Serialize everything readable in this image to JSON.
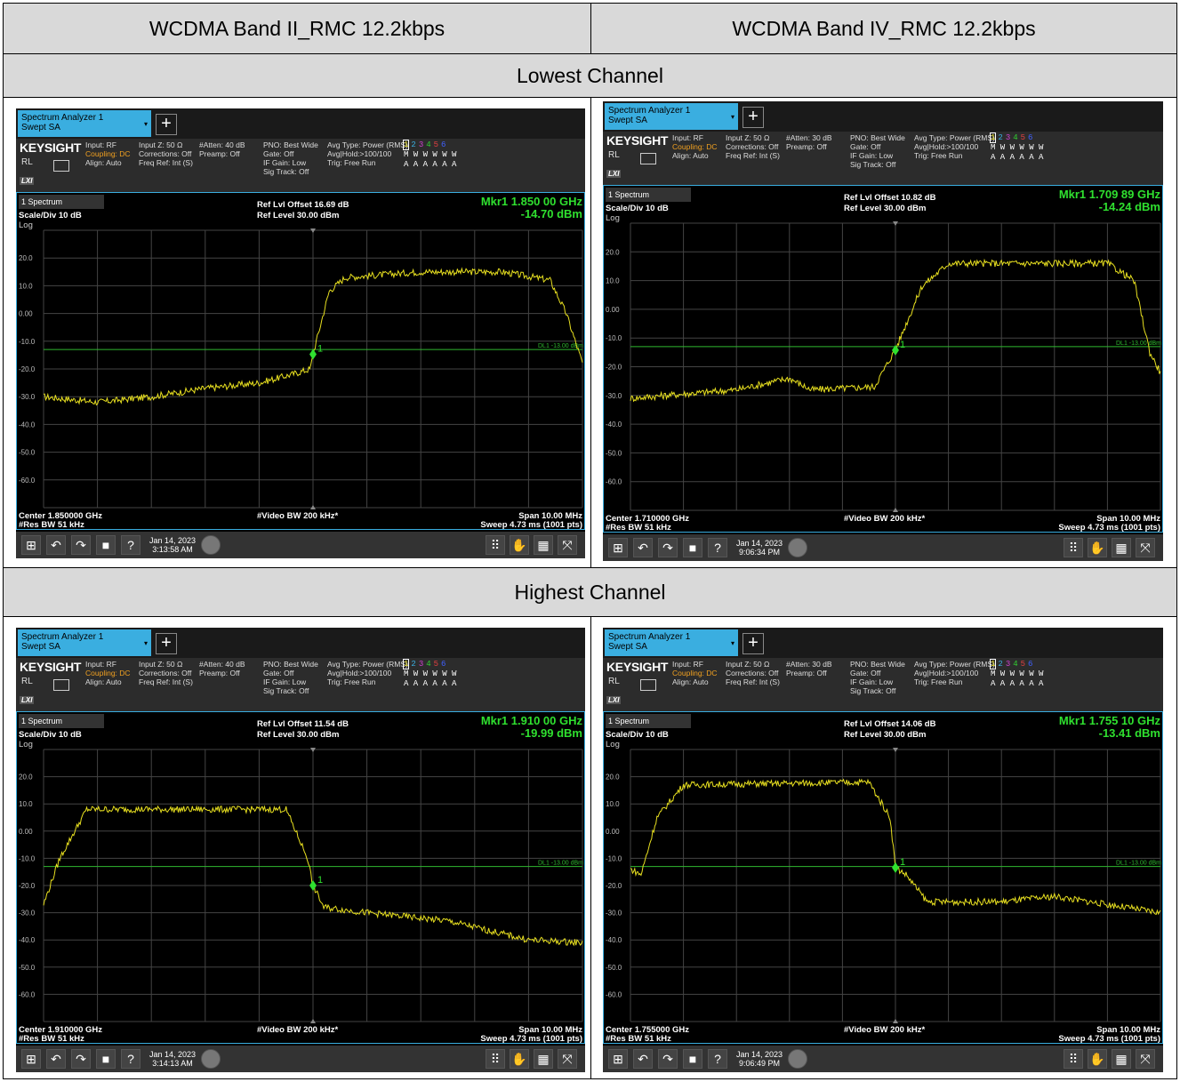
{
  "table": {
    "col1_header": "WCDMA Band II_RMC 12.2kbps",
    "col2_header": "WCDMA Band IV_RMC 12.2kbps",
    "row1_header": "Lowest Channel",
    "row2_header": "Highest Channel"
  },
  "common": {
    "window_title": "Spectrum Analyzer 1",
    "window_sub": "Swept SA",
    "plus": "+",
    "logo": "KEYSIGHT",
    "rl": "RL",
    "lxi": "LXI",
    "input": "Input: RF",
    "coupling": "Coupling: DC",
    "align": "Align: Auto",
    "input_z": "Input Z: 50 Ω",
    "corrections": "Corrections: Off",
    "freq_ref": "Freq Ref: Int (S)",
    "preamp": "Preamp: Off",
    "pno": "PNO: Best Wide",
    "gate": "Gate: Off",
    "if_gain": "IF Gain: Low",
    "sig_track": "Sig Track: Off",
    "avg_type": "Avg Type: Power (RMS)",
    "avg_hold": "Avg|Hold:>100/100",
    "trig": "Trig: Free Run",
    "trace_nums": [
      "1",
      "2",
      "3",
      "4",
      "5",
      "6"
    ],
    "trace_types": "M W W W W W",
    "trace_det": "A A A A A A",
    "window_label": "1 Spectrum",
    "scale": "Scale/Div 10 dB",
    "log": "Log",
    "ref_level": "Ref Level 30.00 dBm",
    "vbw": "#Video BW 200 kHz*",
    "rbw": "#Res BW 51 kHz",
    "span": "Span 10.00 MHz",
    "sweep": "Sweep 4.73 ms (1001 pts)",
    "dl_label": "DL1 -13.00 dBm",
    "marker_num": "1",
    "yticks": [
      "20.0",
      "10.0",
      "0.00",
      "-10.0",
      "-20.0",
      "-30.0",
      "-40.0",
      "-50.0",
      "-60.0"
    ],
    "date": "Jan 14, 2023",
    "colors": {
      "trace": "#e8e020",
      "marker": "#2fe02f",
      "display_line": "#2fb82f",
      "accent": "#3aaee0"
    }
  },
  "panels": [
    {
      "atten": "#Atten: 40 dB",
      "offset": "Ref Lvl Offset 16.69 dB",
      "mkr_freq": "Mkr1  1.850 00 GHz",
      "mkr_amp": "-14.70 dBm",
      "center": "Center 1.850000 GHz",
      "time": "3:13:58 AM"
    },
    {
      "atten": "#Atten: 30 dB",
      "offset": "Ref Lvl Offset 10.82 dB",
      "mkr_freq": "Mkr1  1.709 89 GHz",
      "mkr_amp": "-14.24 dBm",
      "center": "Center 1.710000 GHz",
      "time": "9:06:34 PM"
    },
    {
      "atten": "#Atten: 40 dB",
      "offset": "Ref Lvl Offset 11.54 dB",
      "mkr_freq": "Mkr1  1.910 00 GHz",
      "mkr_amp": "-19.99 dBm",
      "center": "Center 1.910000 GHz",
      "time": "3:14:13 AM"
    },
    {
      "atten": "#Atten: 30 dB",
      "offset": "Ref Lvl Offset 14.06 dB",
      "mkr_freq": "Mkr1  1.755 10 GHz",
      "mkr_amp": "-13.41 dBm",
      "center": "Center 1.755000 GHz",
      "time": "9:06:49 PM"
    }
  ],
  "chart_data": [
    {
      "type": "line",
      "ylim": [
        -70,
        30
      ],
      "markers": [
        {
          "x_div": 5.0,
          "y": -14.7
        }
      ],
      "display_line": -13.0,
      "trace_shape": [
        [
          0,
          -30
        ],
        [
          1,
          -32
        ],
        [
          2,
          -30
        ],
        [
          3,
          -27
        ],
        [
          4,
          -25
        ],
        [
          4.6,
          -22
        ],
        [
          4.95,
          -20
        ],
        [
          5.0,
          -14.7
        ],
        [
          5.3,
          8
        ],
        [
          5.6,
          13
        ],
        [
          7,
          15
        ],
        [
          8.5,
          15
        ],
        [
          9.4,
          12
        ],
        [
          9.7,
          0
        ],
        [
          10,
          -18
        ]
      ]
    },
    {
      "type": "line",
      "ylim": [
        -70,
        30
      ],
      "markers": [
        {
          "x_div": 5.0,
          "y": -14.24
        }
      ],
      "display_line": -13.0,
      "trace_shape": [
        [
          0,
          -31
        ],
        [
          2,
          -28
        ],
        [
          3,
          -24
        ],
        [
          3.4,
          -28
        ],
        [
          4.6,
          -27
        ],
        [
          5.0,
          -14
        ],
        [
          5.5,
          8
        ],
        [
          6,
          16
        ],
        [
          9,
          16
        ],
        [
          9.5,
          10
        ],
        [
          9.8,
          -15
        ],
        [
          10,
          -22
        ]
      ]
    },
    {
      "type": "line",
      "ylim": [
        -70,
        30
      ],
      "markers": [
        {
          "x_div": 5.0,
          "y": -19.99
        }
      ],
      "display_line": -13.0,
      "trace_shape": [
        [
          0,
          -27
        ],
        [
          0.3,
          -10
        ],
        [
          0.8,
          8
        ],
        [
          4.5,
          8
        ],
        [
          4.9,
          -10
        ],
        [
          5.0,
          -20
        ],
        [
          5.2,
          -28
        ],
        [
          6,
          -30
        ],
        [
          7.5,
          -33
        ],
        [
          9,
          -40
        ],
        [
          10,
          -41
        ]
      ]
    },
    {
      "type": "line",
      "ylim": [
        -70,
        30
      ],
      "markers": [
        {
          "x_div": 5.0,
          "y": -13.41
        }
      ],
      "display_line": -13.0,
      "trace_shape": [
        [
          0,
          -14
        ],
        [
          0.2,
          -16
        ],
        [
          0.5,
          5
        ],
        [
          1,
          17
        ],
        [
          4.5,
          18
        ],
        [
          4.9,
          5
        ],
        [
          5.0,
          -13.4
        ],
        [
          5.2,
          -16
        ],
        [
          5.6,
          -26
        ],
        [
          7,
          -26
        ],
        [
          8,
          -24
        ],
        [
          9,
          -27
        ],
        [
          10,
          -30
        ]
      ]
    }
  ]
}
